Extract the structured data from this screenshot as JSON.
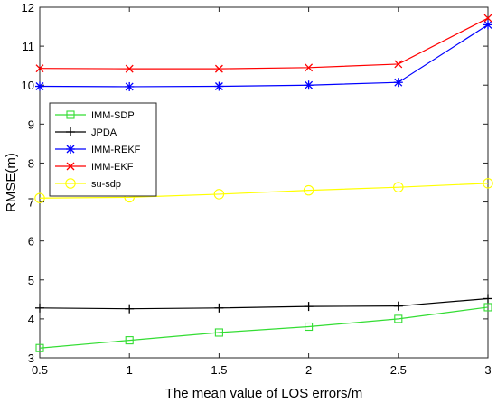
{
  "chart_data": {
    "type": "line",
    "xlabel": "The mean value of LOS errors/m",
    "ylabel": "RMSE(m)",
    "xlim": [
      0.5,
      3
    ],
    "ylim": [
      3,
      12
    ],
    "xticks": [
      0.5,
      1,
      1.5,
      2,
      2.5,
      3
    ],
    "xtick_labels": [
      "0.5",
      "1",
      "1.5",
      "2",
      "2.5",
      "3"
    ],
    "yticks": [
      3,
      4,
      5,
      6,
      7,
      8,
      9,
      10,
      11,
      12
    ],
    "ytick_labels": [
      "3",
      "4",
      "5",
      "6",
      "7",
      "8",
      "9",
      "10",
      "11",
      "12"
    ],
    "grid": false,
    "legend_position": "left",
    "x": [
      0.5,
      1,
      1.5,
      2,
      2.5,
      3
    ],
    "series": [
      {
        "name": "IMM-SDP",
        "color": "#33dd33",
        "marker": "square",
        "values": [
          3.25,
          3.45,
          3.65,
          3.8,
          4.0,
          4.3
        ]
      },
      {
        "name": "JPDA",
        "color": "#000000",
        "marker": "plus",
        "values": [
          4.28,
          4.26,
          4.28,
          4.32,
          4.33,
          4.52
        ]
      },
      {
        "name": "IMM-REKF",
        "color": "#0000ff",
        "marker": "star",
        "values": [
          9.97,
          9.96,
          9.97,
          10.0,
          10.07,
          11.55
        ]
      },
      {
        "name": "IMM-EKF",
        "color": "#ff0000",
        "marker": "x",
        "values": [
          10.43,
          10.42,
          10.42,
          10.45,
          10.54,
          11.72
        ]
      },
      {
        "name": "su-sdp",
        "color": "#ffff00",
        "marker": "circle",
        "values": [
          7.1,
          7.12,
          7.2,
          7.3,
          7.38,
          7.48
        ]
      }
    ]
  }
}
